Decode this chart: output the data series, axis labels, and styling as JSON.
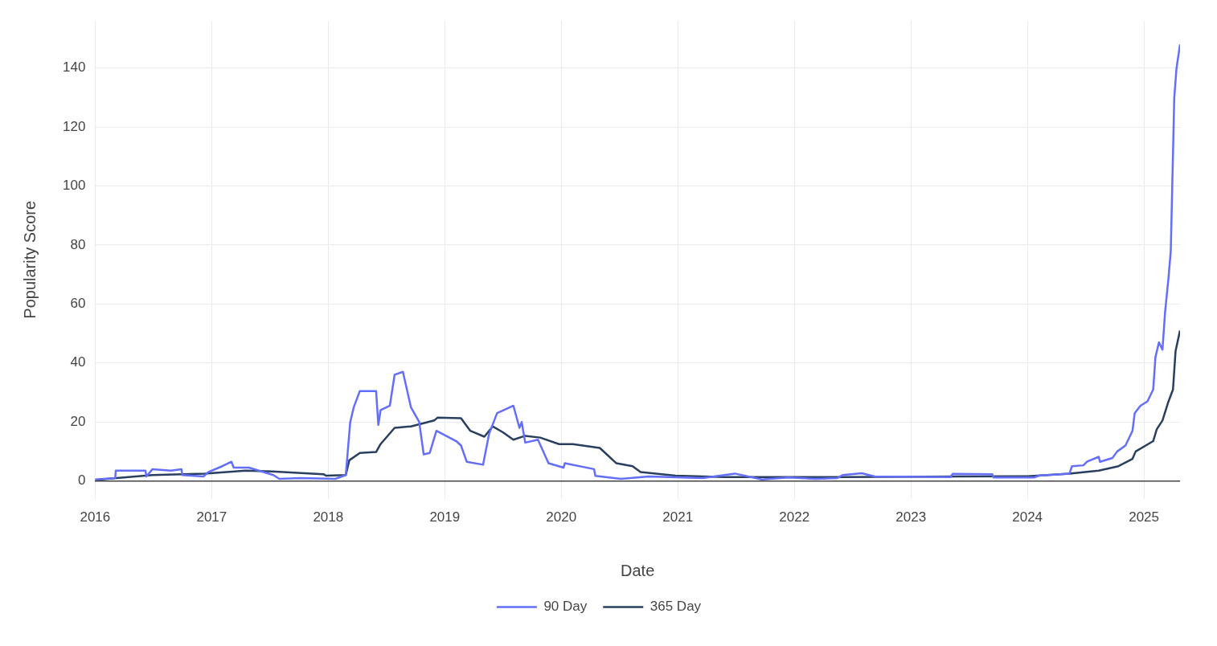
{
  "chart_data": {
    "type": "line",
    "xlabel": "Date",
    "ylabel": "Popularity Score",
    "xlim": [
      "2016-01-01",
      "2025-04-24"
    ],
    "xticks": [
      "2016",
      "2017",
      "2018",
      "2019",
      "2020",
      "2021",
      "2022",
      "2023",
      "2024",
      "2025"
    ],
    "ylim": [
      -6,
      156
    ],
    "yticks": [
      0,
      20,
      40,
      60,
      80,
      100,
      120,
      140
    ],
    "grid": true,
    "legend": "bottom",
    "series": [
      {
        "name": "90 Day",
        "color": "#636efa",
        "x": [
          "2016-01-01",
          "2016-03-04",
          "2016-03-06",
          "2016-06-07",
          "2016-06-10",
          "2016-06-29",
          "2016-08-26",
          "2016-09-28",
          "2016-10-01",
          "2016-12-06",
          "2016-12-21",
          "2017-02-03",
          "2017-03-04",
          "2017-03-11",
          "2017-04-28",
          "2017-07-13",
          "2017-08-01",
          "2017-10-05",
          "2018-01-23",
          "2018-02-25",
          "2018-03-11",
          "2018-03-22",
          "2018-04-10",
          "2018-05-31",
          "2018-06-07",
          "2018-06-14",
          "2018-07-13",
          "2018-07-28",
          "2018-08-23",
          "2018-09-17",
          "2018-10-13",
          "2018-10-27",
          "2018-11-15",
          "2018-12-06",
          "2019-02-06",
          "2019-02-21",
          "2019-03-11",
          "2019-05-01",
          "2019-05-20",
          "2019-06-14",
          "2019-08-04",
          "2019-08-23",
          "2019-08-30",
          "2019-09-10",
          "2019-10-20",
          "2019-11-22",
          "2020-01-08",
          "2020-01-12",
          "2020-04-13",
          "2020-04-17",
          "2020-07-06",
          "2020-10-02",
          "2021-03-19",
          "2021-06-29",
          "2021-09-21",
          "2021-12-14",
          "2022-03-08",
          "2022-05-16",
          "2022-06-01",
          "2022-07-31",
          "2022-09-10",
          "2023-05-05",
          "2023-05-12",
          "2023-09-13",
          "2023-09-17",
          "2024-01-23",
          "2024-02-06",
          "2024-05-12",
          "2024-05-20",
          "2024-06-25",
          "2024-07-06",
          "2024-08-12",
          "2024-08-16",
          "2024-09-24",
          "2024-10-09",
          "2024-11-04",
          "2024-11-26",
          "2024-12-03",
          "2024-12-21",
          "2025-01-12",
          "2025-01-30",
          "2025-02-06",
          "2025-02-17",
          "2025-02-28",
          "2025-03-08",
          "2025-03-19",
          "2025-03-26",
          "2025-04-06",
          "2025-04-13",
          "2025-04-24"
        ],
        "values": [
          0.5,
          1,
          3.5,
          3.5,
          1.5,
          4,
          3.5,
          4,
          2,
          1.5,
          3,
          5,
          6.5,
          4.5,
          4.5,
          2,
          0.7,
          1,
          0.7,
          2,
          20,
          25,
          30.5,
          30.5,
          19,
          24,
          25.5,
          36,
          37,
          25,
          20,
          9,
          9.5,
          17,
          13.5,
          12,
          6.5,
          5.5,
          16,
          23,
          25.5,
          18,
          20,
          13,
          14,
          6,
          4.5,
          6,
          4,
          1.7,
          0.7,
          1.5,
          1,
          2.5,
          0.5,
          1.2,
          0.7,
          1,
          2,
          2.6,
          1.5,
          1.3,
          2.4,
          2.3,
          1.2,
          1.2,
          1.8,
          2.5,
          5,
          5.3,
          6.5,
          8.2,
          6.5,
          7.8,
          10,
          12,
          17,
          23,
          25.5,
          27,
          31,
          42,
          47,
          44.5,
          57,
          69,
          78,
          130,
          140,
          148
        ]
      },
      {
        "name": "365 Day",
        "color": "#2a3f5f",
        "x": [
          "2016-01-01",
          "2016-03-08",
          "2016-06-29",
          "2016-12-10",
          "2017-04-17",
          "2017-07-09",
          "2017-12-17",
          "2017-12-25",
          "2018-02-25",
          "2018-03-08",
          "2018-04-10",
          "2018-05-31",
          "2018-06-14",
          "2018-07-28",
          "2018-09-17",
          "2018-11-29",
          "2018-12-10",
          "2019-02-21",
          "2019-03-22",
          "2019-05-05",
          "2019-05-31",
          "2019-07-02",
          "2019-08-04",
          "2019-09-10",
          "2019-10-27",
          "2019-12-25",
          "2020-02-06",
          "2020-05-01",
          "2020-06-22",
          "2020-08-12",
          "2020-09-06",
          "2020-12-25",
          "2021-05-27",
          "2022-06-01",
          "2023-06-01",
          "2024-01-01",
          "2024-05-12",
          "2024-08-12",
          "2024-10-13",
          "2024-11-26",
          "2024-12-06",
          "2025-01-30",
          "2025-02-10",
          "2025-02-28",
          "2025-03-19",
          "2025-04-02",
          "2025-04-10",
          "2025-04-24"
        ],
        "values": [
          0.3,
          1,
          2,
          2.5,
          3.5,
          3.2,
          2.3,
          1.8,
          2,
          7,
          9.5,
          9.8,
          12.5,
          18,
          18.5,
          20.5,
          21.5,
          21.3,
          17,
          15,
          18.5,
          16.5,
          14,
          15.3,
          14.7,
          12.5,
          12.5,
          11.2,
          6,
          5,
          3,
          1.8,
          1.3,
          1.3,
          1.5,
          1.6,
          2.5,
          3.5,
          5,
          7.5,
          10,
          13.5,
          17.5,
          20.5,
          27,
          31,
          44,
          51
        ]
      }
    ]
  }
}
